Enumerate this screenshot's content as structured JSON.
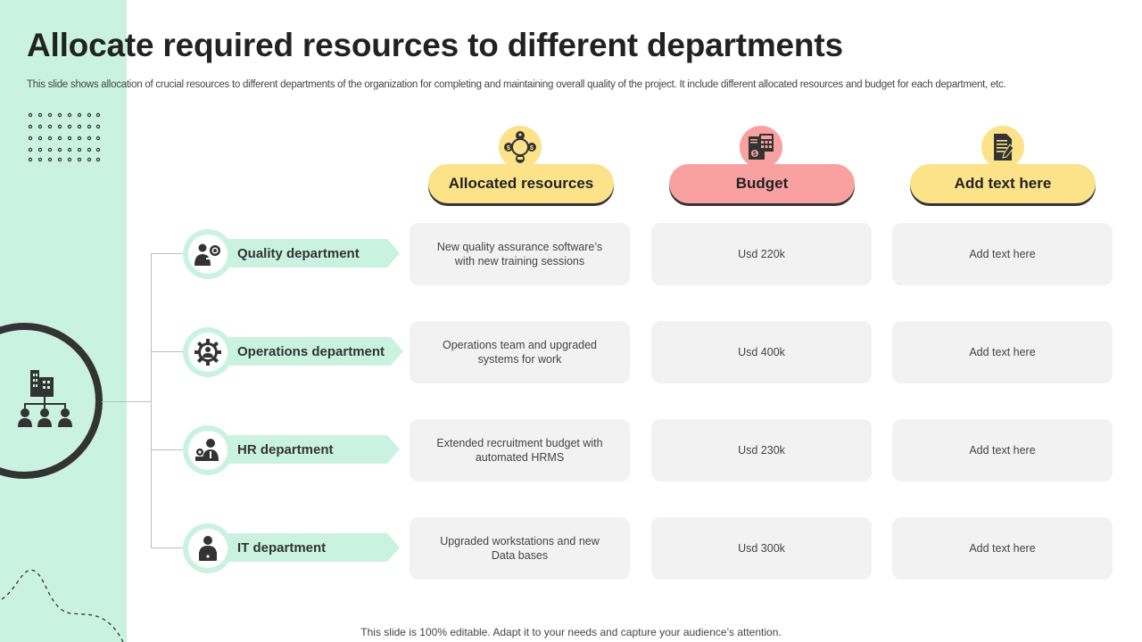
{
  "slide": {
    "title": "Allocate required resources to different departments",
    "subtitle": "This slide shows allocation of crucial resources to different departments of the organization for completing and maintaining overall quality of  the project. It include different allocated resources and budget for each department, etc.",
    "footer": "This slide is 100% editable. Adapt it to your needs and capture your audience’s attention."
  },
  "columns": [
    {
      "label": "Allocated resources",
      "icon": "resource-network-icon",
      "color": "#fce38a"
    },
    {
      "label": "Budget",
      "icon": "budget-calculator-icon",
      "color": "#f9a1a1"
    },
    {
      "label": "Add text here",
      "icon": "document-pen-icon",
      "color": "#fce38a"
    }
  ],
  "departments": [
    {
      "name": "Quality department",
      "icon": "quality-inspector-icon",
      "resources": "New quality assurance software’s with new training sessions",
      "budget": "Usd  220k",
      "extra": "Add text here"
    },
    {
      "name": "Operations department",
      "icon": "gear-person-icon",
      "resources": "Operations team and upgraded systems for work",
      "budget": "Usd  400k",
      "extra": "Add text here"
    },
    {
      "name": "HR department",
      "icon": "hr-team-icon",
      "resources": "Extended recruitment  budget with automated HRMS",
      "budget": "Usd  230k",
      "extra": "Add text here"
    },
    {
      "name": "IT department",
      "icon": "it-worker-icon",
      "resources": "Upgraded  workstations and new Data bases",
      "budget": "Usd  300k",
      "extra": "Add text here"
    }
  ],
  "hub": {
    "icon": "organization-hierarchy-icon"
  },
  "colors": {
    "mint": "#c9f2e1",
    "yellow": "#fce38a",
    "pink": "#f9a1a1",
    "cell": "#f2f2f2",
    "dark": "#333333"
  }
}
